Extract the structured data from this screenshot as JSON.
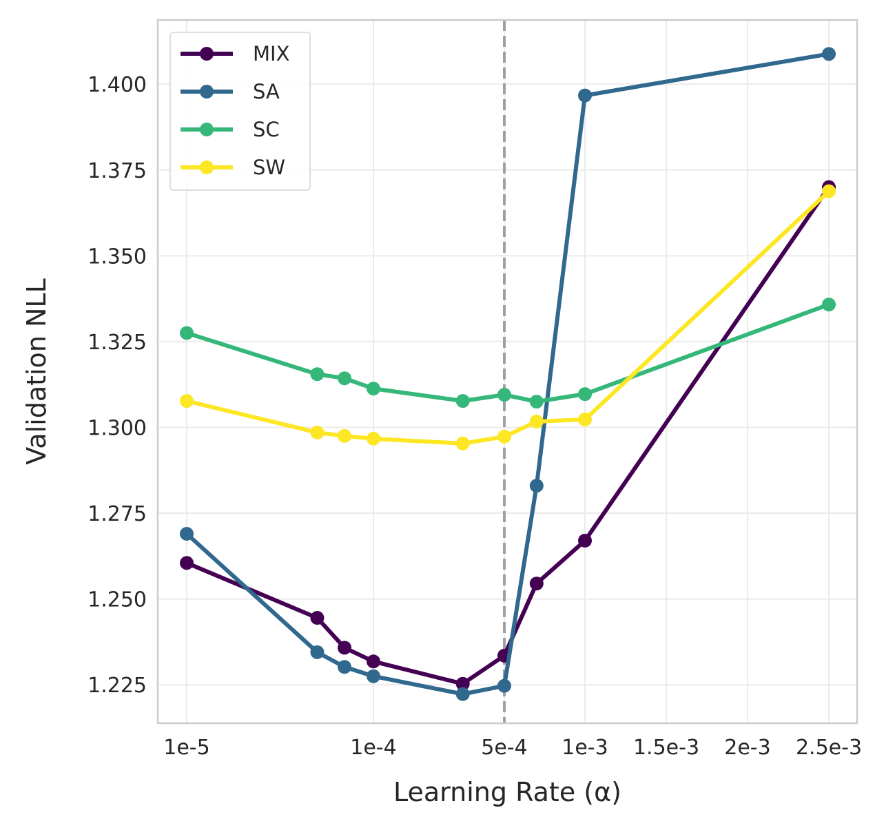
{
  "chart_data": {
    "type": "line",
    "title": "",
    "xlabel": "Learning Rate (α)",
    "ylabel": "Validation NLL",
    "x_scale": "log-linear-hybrid",
    "x_ticks": [
      {
        "value": 1e-05,
        "label": "1e-5"
      },
      {
        "value": 0.0001,
        "label": "1e-4"
      },
      {
        "value": 0.0005,
        "label": "5e-4"
      },
      {
        "value": 0.001,
        "label": "1e-3"
      },
      {
        "value": 0.0015,
        "label": "1.5e-3"
      },
      {
        "value": 0.002,
        "label": "2e-3"
      },
      {
        "value": 0.0025,
        "label": "2.5e-3"
      }
    ],
    "y_ticks": [
      {
        "value": 1.225,
        "label": "1.225"
      },
      {
        "value": 1.25,
        "label": "1.250"
      },
      {
        "value": 1.275,
        "label": "1.275"
      },
      {
        "value": 1.3,
        "label": "1.300"
      },
      {
        "value": 1.325,
        "label": "1.325"
      },
      {
        "value": 1.35,
        "label": "1.350"
      },
      {
        "value": 1.375,
        "label": "1.375"
      },
      {
        "value": 1.4,
        "label": "1.400"
      }
    ],
    "ylim": [
      1.2138,
      1.4187
    ],
    "grid": true,
    "legend_position": "top-left",
    "reference_line": {
      "x": 0.0005,
      "style": "dashed",
      "color": "#a0a0a0"
    },
    "x": [
      1e-05,
      5e-05,
      7e-05,
      0.0001,
      0.0003,
      0.0005,
      0.0007,
      0.001,
      0.0025
    ],
    "series": [
      {
        "name": "MIX",
        "color": "#440154",
        "values": [
          1.2605,
          1.2445,
          1.2358,
          1.2318,
          1.2253,
          1.2335,
          1.2545,
          1.267,
          1.37
        ]
      },
      {
        "name": "SA",
        "color": "#31688e",
        "values": [
          1.269,
          1.2345,
          1.2302,
          1.2275,
          1.2223,
          1.2247,
          1.283,
          1.3967,
          1.4088
        ]
      },
      {
        "name": "SC",
        "color": "#35b779",
        "values": [
          1.3275,
          1.3155,
          1.3143,
          1.3113,
          1.3077,
          1.3095,
          1.3075,
          1.3097,
          1.3358
        ]
      },
      {
        "name": "SW",
        "color": "#fde725",
        "values": [
          1.3077,
          1.2985,
          1.2975,
          1.2967,
          1.2953,
          1.2973,
          1.3017,
          1.3023,
          1.3688
        ]
      }
    ]
  }
}
